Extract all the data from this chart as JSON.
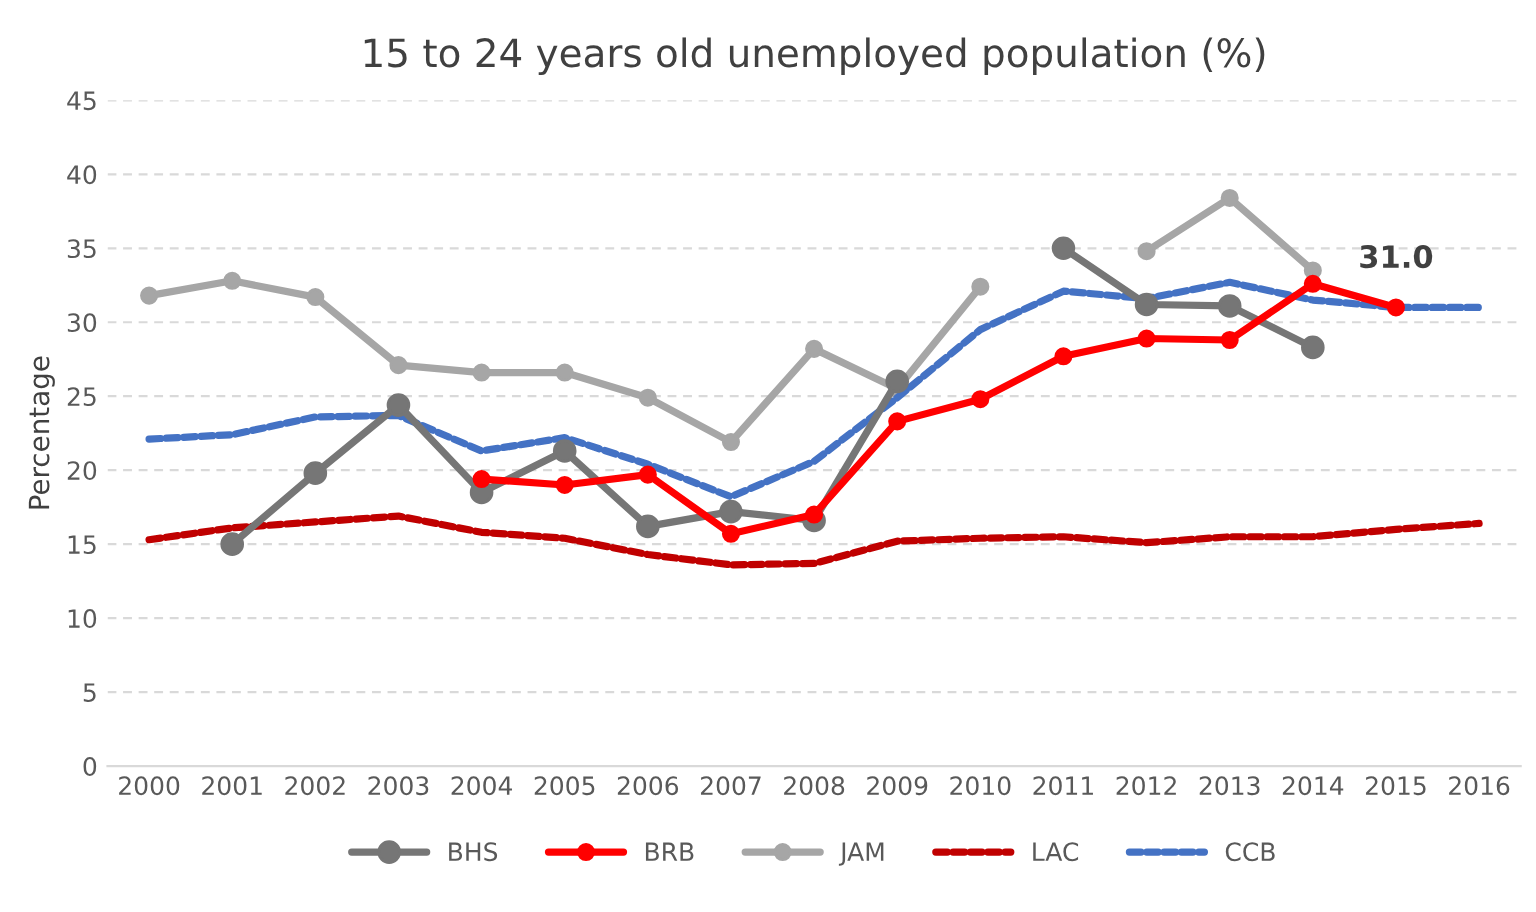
{
  "chart_data": {
    "type": "line",
    "title": "15 to 24 years old unemployed population (%)",
    "ylabel": "Percentage",
    "categories": [
      "2000",
      "2001",
      "2002",
      "2003",
      "2004",
      "2005",
      "2006",
      "2007",
      "2008",
      "2009",
      "2010",
      "2011",
      "2012",
      "2013",
      "2014",
      "2015",
      "2016"
    ],
    "ylim": [
      0,
      45
    ],
    "yticks": [
      0,
      5,
      10,
      15,
      20,
      25,
      30,
      35,
      40,
      45
    ],
    "grid": "y",
    "legend": "bottom",
    "series": [
      {
        "name": "BHS",
        "color": "#767676",
        "marker": "circle",
        "line_style": "solid",
        "values": [
          null,
          15.0,
          19.8,
          24.4,
          18.5,
          21.3,
          16.2,
          17.2,
          16.6,
          26.0,
          null,
          35.0,
          31.2,
          31.1,
          28.3,
          null,
          null
        ]
      },
      {
        "name": "BRB",
        "color": "#ff0000",
        "marker": "circle",
        "line_style": "solid",
        "values": [
          null,
          null,
          null,
          null,
          19.4,
          19.0,
          19.7,
          15.7,
          17.0,
          23.3,
          24.8,
          27.7,
          28.9,
          28.8,
          32.6,
          31.0,
          null
        ],
        "value_labels": [
          null,
          null,
          null,
          null,
          null,
          null,
          null,
          null,
          null,
          null,
          null,
          null,
          null,
          null,
          null,
          "31.0",
          null
        ]
      },
      {
        "name": "JAM",
        "color": "#a6a6a6",
        "marker": "circle",
        "line_style": "solid",
        "values": [
          31.8,
          32.8,
          31.7,
          27.1,
          26.6,
          26.6,
          24.9,
          21.9,
          28.2,
          25.5,
          32.4,
          null,
          34.8,
          38.4,
          33.5,
          null,
          null
        ]
      },
      {
        "name": "LAC",
        "color": "#c00000",
        "marker": "none",
        "line_style": "dashed",
        "values": [
          15.3,
          16.1,
          16.5,
          16.9,
          15.8,
          15.4,
          14.3,
          13.6,
          13.7,
          15.2,
          15.4,
          15.5,
          15.1,
          15.5,
          15.5,
          16.0,
          16.4
        ]
      },
      {
        "name": "CCB",
        "color": "#4472c4",
        "marker": "none",
        "line_style": "dashed",
        "values": [
          22.1,
          22.4,
          23.6,
          23.7,
          21.3,
          22.2,
          20.4,
          18.2,
          20.6,
          24.9,
          29.5,
          32.1,
          31.6,
          32.7,
          31.5,
          31.0,
          31.0
        ]
      }
    ]
  }
}
